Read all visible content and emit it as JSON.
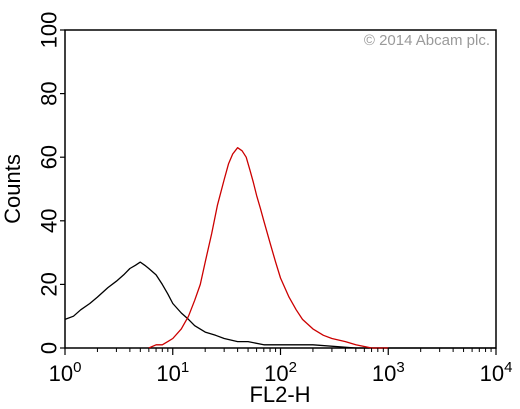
{
  "chart_data": {
    "type": "line",
    "xlabel": "FL2-H",
    "ylabel": "Counts",
    "xscale": "log",
    "xlim": [
      1,
      10000
    ],
    "ylim": [
      0,
      100
    ],
    "x_ticks": [
      {
        "base": "10",
        "exp": "0"
      },
      {
        "base": "10",
        "exp": "1"
      },
      {
        "base": "10",
        "exp": "2"
      },
      {
        "base": "10",
        "exp": "3"
      },
      {
        "base": "10",
        "exp": "4"
      }
    ],
    "y_ticks": [
      "0",
      "20",
      "40",
      "60",
      "80",
      "100"
    ],
    "watermark": "© 2014 Abcam plc.",
    "grid": false,
    "legend": "none",
    "series": [
      {
        "color": "#000000",
        "x": [
          1.0,
          1.2,
          1.4,
          1.7,
          2.0,
          2.5,
          3.0,
          3.5,
          4.0,
          4.5,
          5.0,
          5.5,
          6.0,
          7.0,
          8.0,
          9.0,
          10.0,
          12.0,
          14.0,
          16.0,
          20.0,
          25.0,
          30.0,
          40.0,
          50.0,
          70.0,
          100.0,
          200.0,
          500.0,
          1000.0,
          3000.0,
          10000.0
        ],
        "y": [
          9,
          10,
          12,
          14,
          16,
          19,
          21,
          23,
          25,
          26,
          27,
          26,
          25,
          23,
          20,
          17,
          14,
          11,
          9,
          7,
          5,
          4,
          3,
          2,
          2,
          1,
          1,
          1,
          0,
          0,
          0,
          0
        ]
      },
      {
        "color": "#cc0000",
        "x": [
          6.0,
          7.0,
          8.0,
          9.0,
          10.0,
          12.0,
          14.0,
          16.0,
          18.0,
          20.0,
          23.0,
          26.0,
          30.0,
          33.0,
          36.0,
          40.0,
          44.0,
          48.0,
          52.0,
          56.0,
          60.0,
          65.0,
          70.0,
          80.0,
          90.0,
          100.0,
          120.0,
          140.0,
          160.0,
          200.0,
          250.0,
          300.0,
          400.0,
          500.0,
          700.0,
          1000.0
        ],
        "y": [
          0,
          1,
          1,
          2,
          3,
          6,
          10,
          15,
          20,
          27,
          36,
          45,
          53,
          58,
          61,
          63,
          62,
          60,
          56,
          52,
          48,
          44,
          40,
          33,
          27,
          22,
          16,
          12,
          9,
          6,
          4,
          3,
          2,
          1,
          0,
          0
        ]
      }
    ]
  }
}
